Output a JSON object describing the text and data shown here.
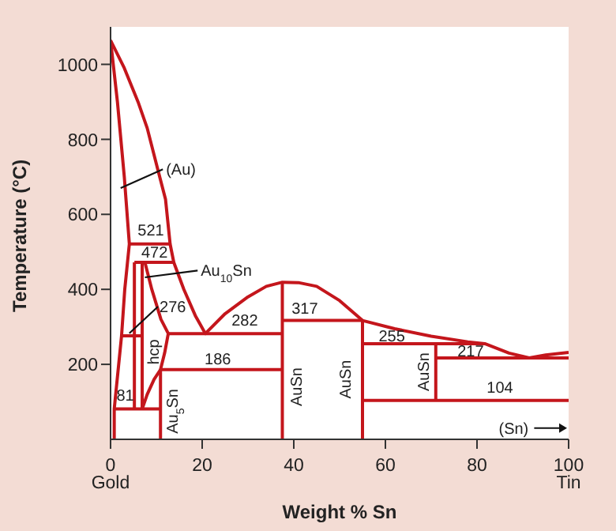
{
  "chart_data": {
    "type": "line",
    "xlabel": "Weight % Sn",
    "ylabel": "Temperature (°C)",
    "xlim": [
      0,
      100
    ],
    "xticks": [
      {
        "value": 0,
        "label": "0\nGold"
      },
      20,
      40,
      60,
      80,
      {
        "value": 100,
        "label": "100\nTin"
      }
    ],
    "ylim": [
      0,
      1100
    ],
    "yticks": [
      200,
      400,
      600,
      800,
      1000
    ],
    "marker": "none",
    "line_style": "solid",
    "series": [
      {
        "color": "#c4161c",
        "x": [
          0,
          3,
          6,
          8,
          10.3,
          12,
          13,
          13.8,
          16,
          18.5,
          20.7,
          25,
          30,
          34,
          37.5,
          41,
          45,
          50,
          55,
          62,
          70,
          78,
          81.7,
          87,
          91.4,
          95,
          100
        ],
        "values": [
          1064,
          990,
          900,
          830,
          720,
          640,
          521,
          472,
          400,
          330,
          282,
          335,
          380,
          408,
          419,
          418,
          408,
          370,
          317,
          295,
          275,
          260,
          255,
          230,
          217,
          225,
          232
        ]
      },
      {
        "color": "#c4161c",
        "x": [
          0,
          1.5,
          3,
          4.1,
          3.1,
          2.4,
          0.8,
          0.8
        ],
        "values": [
          1064,
          900,
          700,
          521,
          400,
          276,
          81,
          0
        ]
      },
      {
        "color": "#c4161c",
        "x": [
          4.1,
          13
        ],
        "values": [
          521,
          521
        ]
      },
      {
        "color": "#c4161c",
        "x": [
          5.2,
          13.8
        ],
        "values": [
          472,
          472
        ]
      },
      {
        "color": "#c4161c",
        "x": [
          2.4,
          6.9
        ],
        "values": [
          276,
          276
        ]
      },
      {
        "color": "#c4161c",
        "x": [
          12.6,
          37.5
        ],
        "values": [
          282,
          282
        ]
      },
      {
        "color": "#c4161c",
        "x": [
          10.9,
          37.5
        ],
        "values": [
          186,
          186
        ]
      },
      {
        "color": "#c4161c",
        "x": [
          0.8,
          10.9
        ],
        "values": [
          81,
          81
        ]
      },
      {
        "color": "#c4161c",
        "x": [
          37.5,
          55
        ],
        "values": [
          317,
          317
        ]
      },
      {
        "color": "#c4161c",
        "x": [
          55,
          81.7
        ],
        "values": [
          255,
          255
        ]
      },
      {
        "color": "#c4161c",
        "x": [
          71,
          100
        ],
        "values": [
          217,
          217
        ]
      },
      {
        "color": "#c4161c",
        "x": [
          55,
          100
        ],
        "values": [
          104,
          104
        ]
      },
      {
        "color": "#c4161c",
        "x": [
          5.2,
          5.2
        ],
        "values": [
          472,
          81
        ]
      },
      {
        "color": "#c4161c",
        "x": [
          6.9,
          6.9
        ],
        "values": [
          472,
          81
        ]
      },
      {
        "color": "#c4161c",
        "x": [
          7.5,
          9,
          11,
          12.6,
          11.8,
          10.9,
          10.9
        ],
        "values": [
          472,
          400,
          320,
          282,
          230,
          186,
          0
        ]
      },
      {
        "color": "#c4161c",
        "x": [
          6.9,
          8,
          9.5,
          10.9
        ],
        "values": [
          81,
          120,
          160,
          186
        ]
      },
      {
        "color": "#c4161c",
        "x": [
          37.5,
          37.5
        ],
        "values": [
          419,
          0
        ]
      },
      {
        "color": "#c4161c",
        "x": [
          55,
          55
        ],
        "values": [
          317,
          0
        ]
      },
      {
        "color": "#c4161c",
        "x": [
          71,
          71
        ],
        "values": [
          255,
          104
        ]
      }
    ],
    "annotations": [
      "(Au)",
      "521",
      "472",
      "Au$_{10}$Sn",
      "276",
      "hcp",
      "282",
      "186",
      "81",
      "Au$_{5}$Sn",
      "AuSn",
      "317",
      "255",
      "217",
      "AuSn",
      "AuSn",
      "104",
      "(Sn)"
    ]
  }
}
